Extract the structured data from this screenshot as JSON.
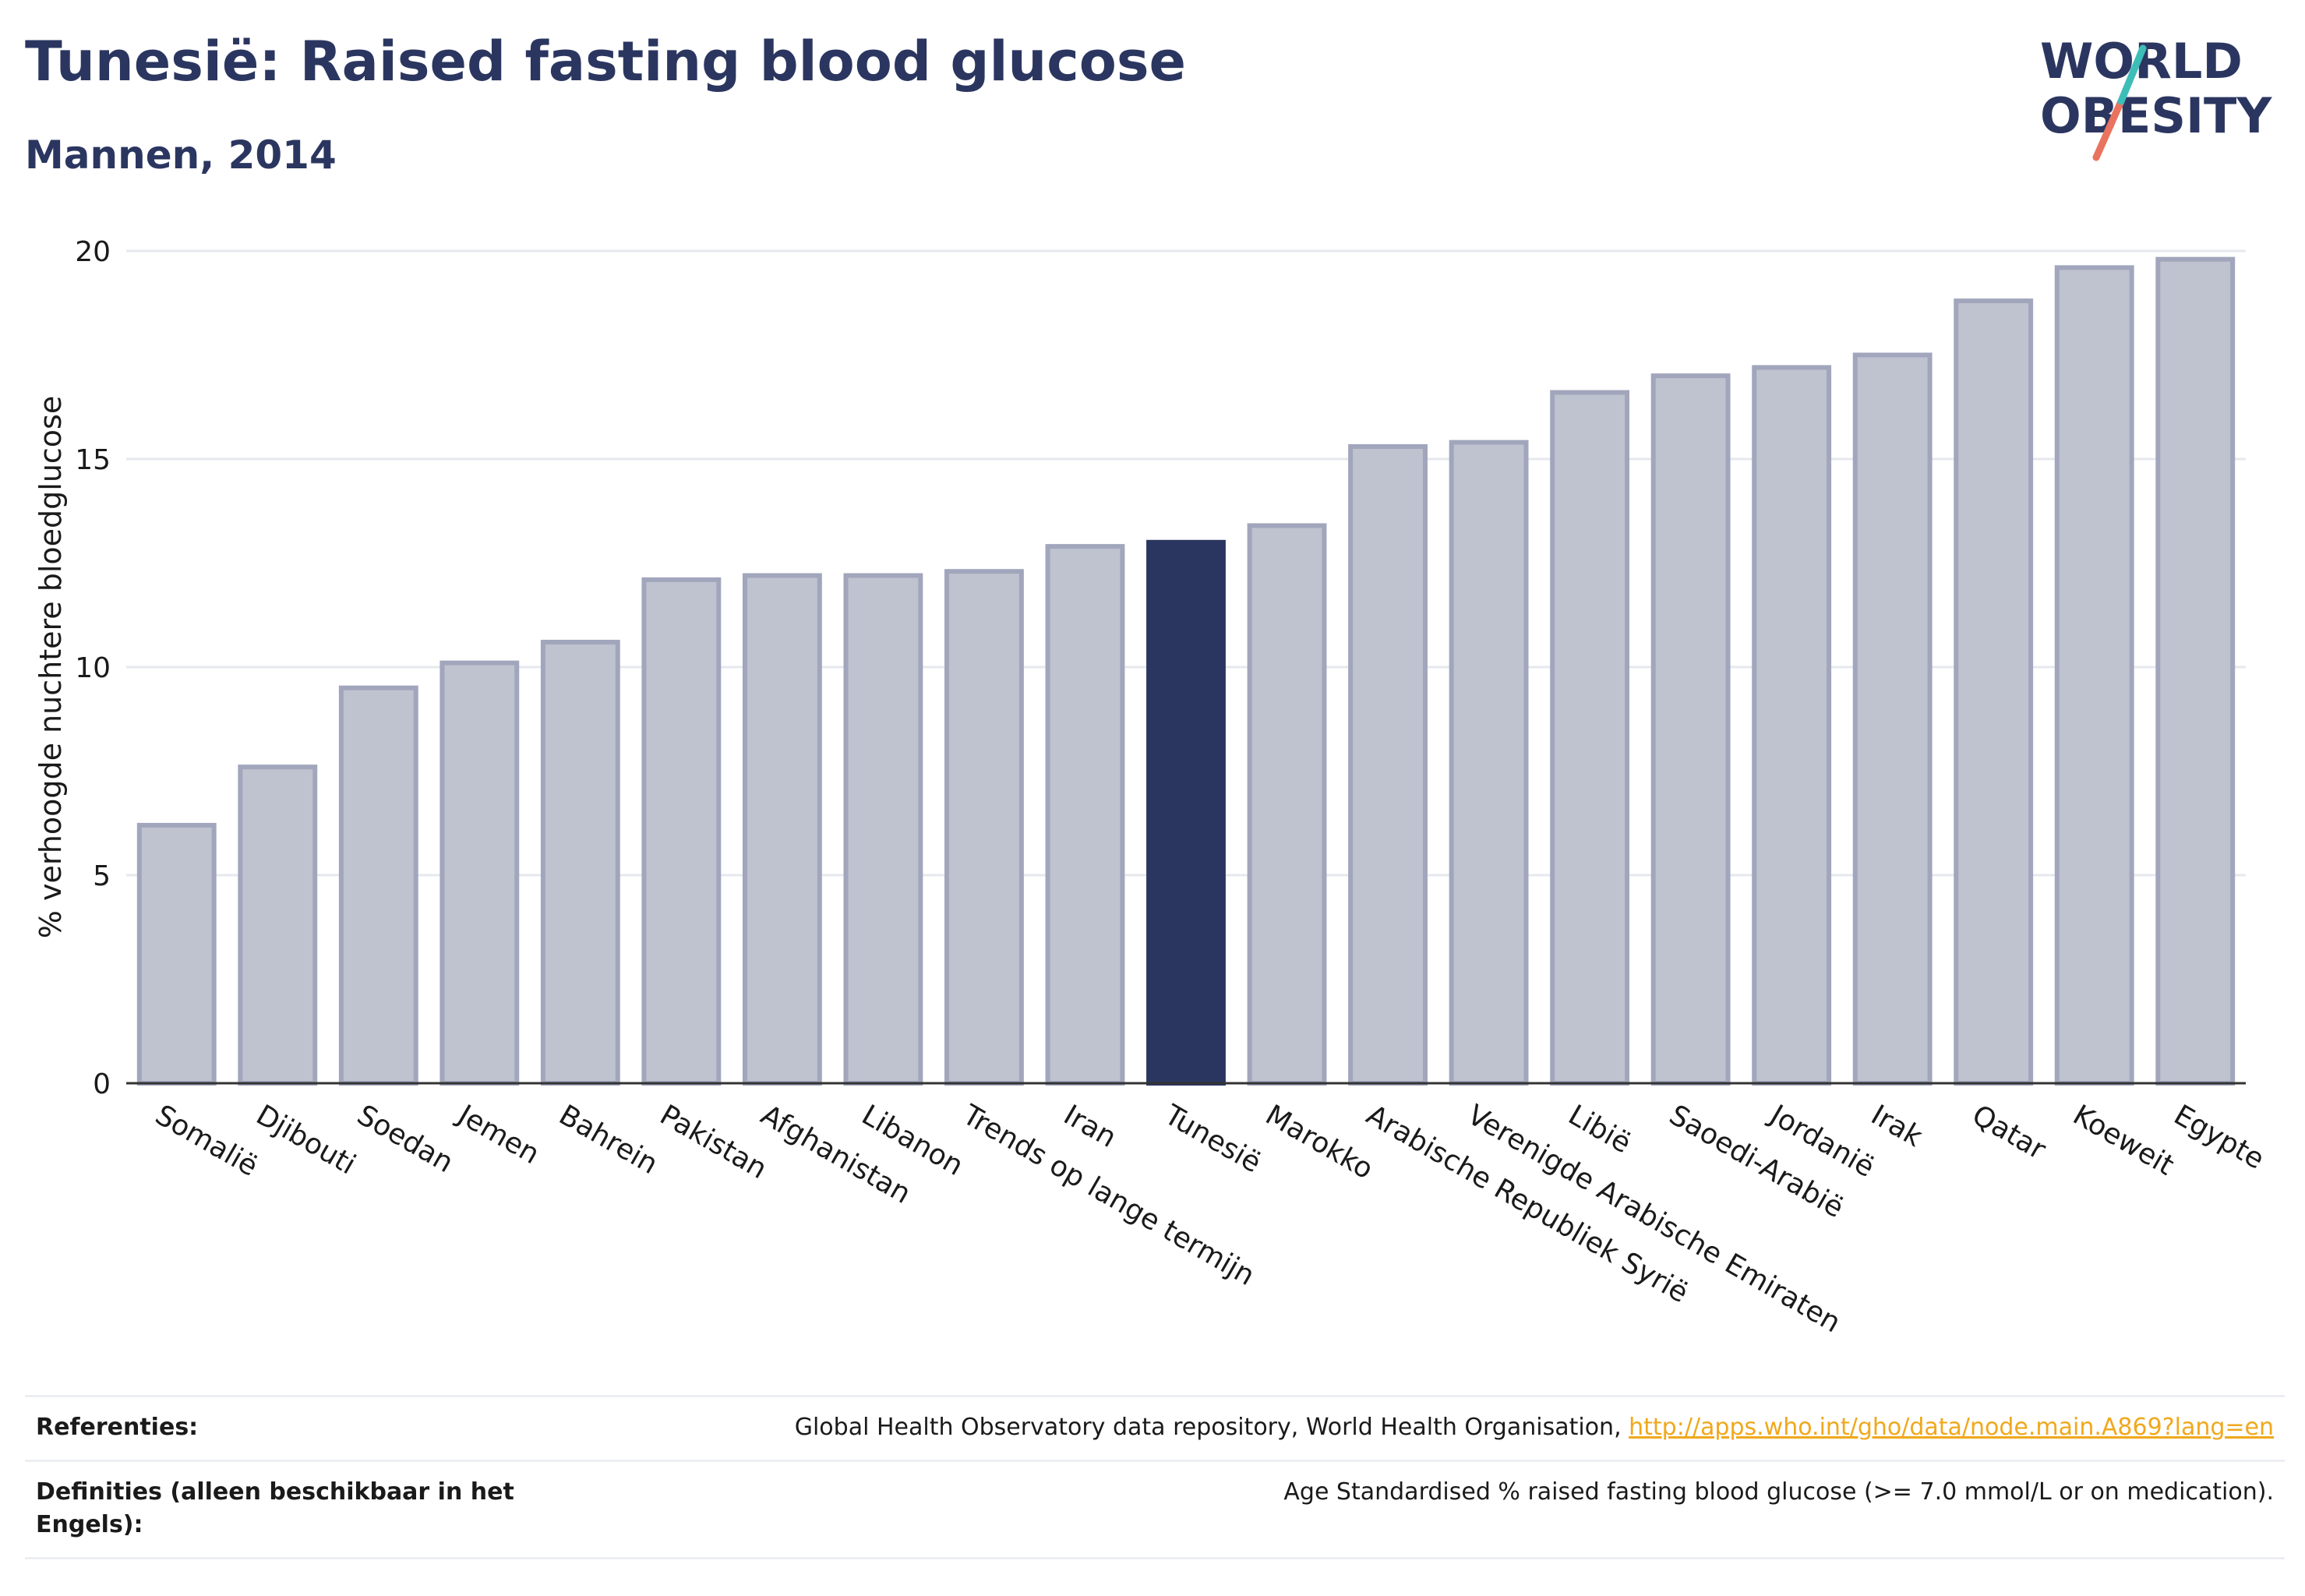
{
  "header": {
    "title": "Tunesië: Raised fasting blood glucose",
    "subtitle": "Mannen, 2014"
  },
  "logo": {
    "line1": "WORLD",
    "line2": "OBESITY",
    "color": "#2b3660",
    "accent_teal": "#3dbdb8",
    "accent_coral": "#e9735e"
  },
  "chart_data": {
    "type": "bar",
    "title": "",
    "xlabel": "",
    "ylabel": "% verhoogde nuchtere bloedglucose",
    "ylim": [
      0,
      20
    ],
    "yticks": [
      0,
      5,
      10,
      15,
      20
    ],
    "grid": true,
    "categories": [
      "Somalië",
      "Djibouti",
      "Soedan",
      "Jemen",
      "Bahrein",
      "Pakistan",
      "Afghanistan",
      "Libanon",
      "Trends op lange termijn",
      "Iran",
      "Tunesië",
      "Marokko",
      "Arabische Republiek Syrië",
      "Verenigde Arabische Emiraten",
      "Libië",
      "Saoedi-Arabië",
      "Jordanië",
      "Irak",
      "Qatar",
      "Koeweit",
      "Egypte"
    ],
    "values": [
      6.2,
      7.6,
      9.5,
      10.1,
      10.6,
      12.1,
      12.2,
      12.2,
      12.3,
      12.9,
      13.0,
      13.4,
      15.3,
      15.4,
      16.6,
      17.0,
      17.2,
      17.5,
      18.8,
      19.6,
      19.8
    ],
    "highlight": "Tunesië",
    "colors": {
      "bar": "#bfc2cf",
      "bar_stroke": "#a1a6bc",
      "highlight": "#2b3660",
      "grid": "#e6e8ee",
      "text": "#1a1a1a"
    }
  },
  "footer": {
    "references_label": "Referenties:",
    "references_text": "Global Health Observatory data repository, World Health Organisation, ",
    "references_link": "http://apps.who.int/gho/data/node.main.A869?lang=en",
    "definitions_label": "Definities (alleen beschikbaar in het Engels):",
    "definitions_text": "Age Standardised % raised fasting blood glucose (>= 7.0 mmol/L or on medication)."
  }
}
